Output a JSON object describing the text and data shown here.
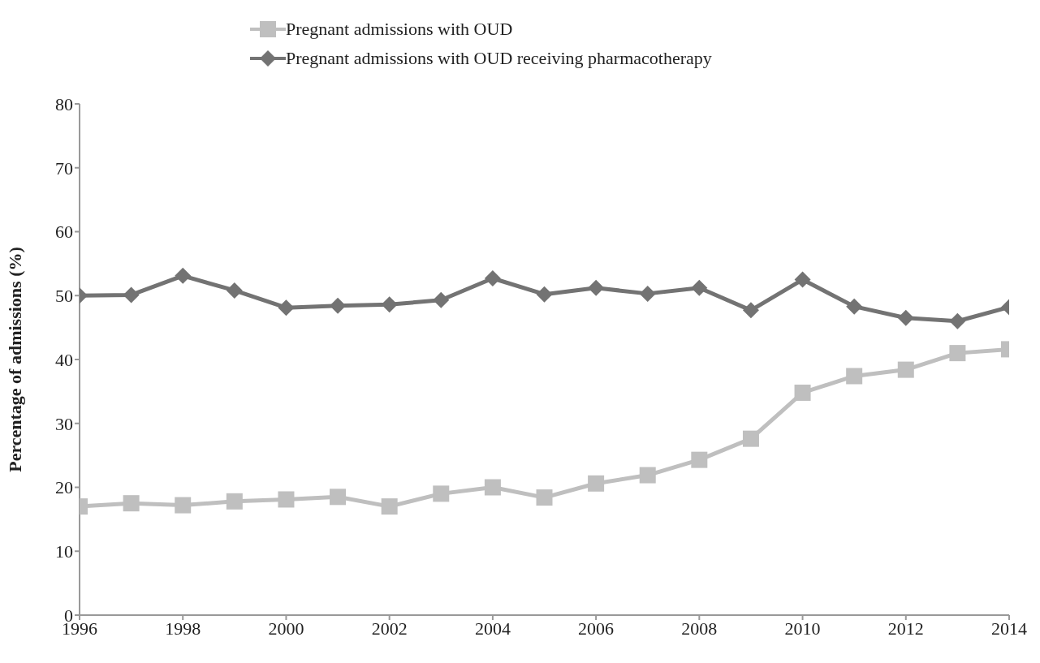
{
  "chart_data": {
    "type": "line",
    "ylabel": "Percentage of admissions (%)",
    "x": [
      1996,
      1997,
      1998,
      1999,
      2000,
      2001,
      2002,
      2003,
      2004,
      2005,
      2006,
      2007,
      2008,
      2009,
      2010,
      2011,
      2012,
      2013,
      2014
    ],
    "series": [
      {
        "name": "Pregnant admissions with OUD",
        "color": "#bfbfbf",
        "marker": "square",
        "values": [
          17.0,
          17.5,
          17.2,
          17.8,
          18.1,
          18.5,
          17.0,
          19.0,
          20.0,
          18.4,
          20.6,
          21.9,
          24.3,
          27.6,
          34.8,
          37.4,
          38.4,
          41.0,
          41.6
        ]
      },
      {
        "name": "Pregnant admissions with OUD receiving pharmacotherapy",
        "color": "#737373",
        "marker": "diamond",
        "values": [
          50.0,
          50.1,
          53.1,
          50.8,
          48.1,
          48.4,
          48.6,
          49.3,
          52.7,
          50.2,
          51.2,
          50.3,
          51.2,
          47.7,
          52.5,
          48.3,
          46.5,
          46.0,
          48.2
        ]
      }
    ],
    "xlim": [
      1996,
      2014
    ],
    "xticks": [
      1996,
      1998,
      2000,
      2002,
      2004,
      2006,
      2008,
      2010,
      2012,
      2014
    ],
    "ylim": [
      0,
      80
    ],
    "yticks": [
      0,
      10,
      20,
      30,
      40,
      50,
      60,
      70,
      80
    ],
    "grid": false,
    "legend": "top"
  }
}
